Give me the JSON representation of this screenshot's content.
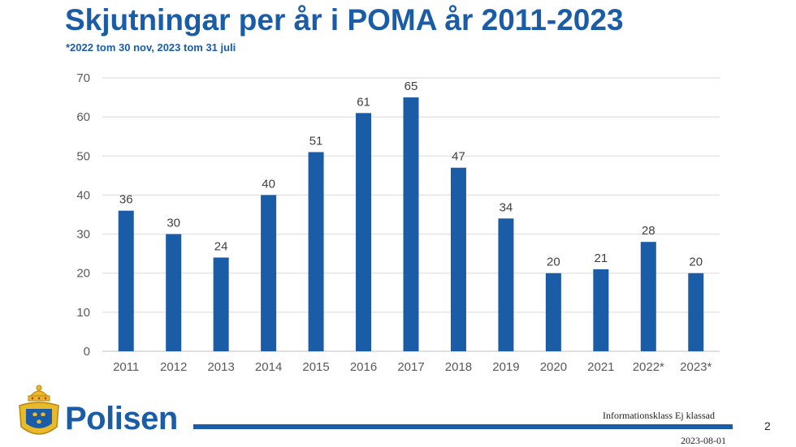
{
  "header": {
    "title": "Skjutningar per år i POMA år 2011-2023",
    "subtitle": "*2022 tom 30 nov, 2023 tom 31 juli"
  },
  "footer": {
    "logo_text": "Polisen",
    "classification": "Informationsklass Ej klassad",
    "page_number": "2",
    "date": "2023-08-01"
  },
  "colors": {
    "brand": "#1a5da6",
    "bar": "#1a5da6",
    "gold": "#e8b92b"
  },
  "chart_data": {
    "type": "bar",
    "title": "Skjutningar per år i POMA år 2011-2023",
    "xlabel": "",
    "ylabel": "",
    "categories": [
      "2011",
      "2012",
      "2013",
      "2014",
      "2015",
      "2016",
      "2017",
      "2018",
      "2019",
      "2020",
      "2021",
      "2022*",
      "2023*"
    ],
    "values": [
      36,
      30,
      24,
      40,
      51,
      61,
      65,
      47,
      34,
      20,
      21,
      28,
      20
    ],
    "ylim": [
      0,
      70
    ],
    "yticks": [
      0,
      10,
      20,
      30,
      40,
      50,
      60,
      70
    ],
    "grid": true,
    "data_labels": true
  }
}
